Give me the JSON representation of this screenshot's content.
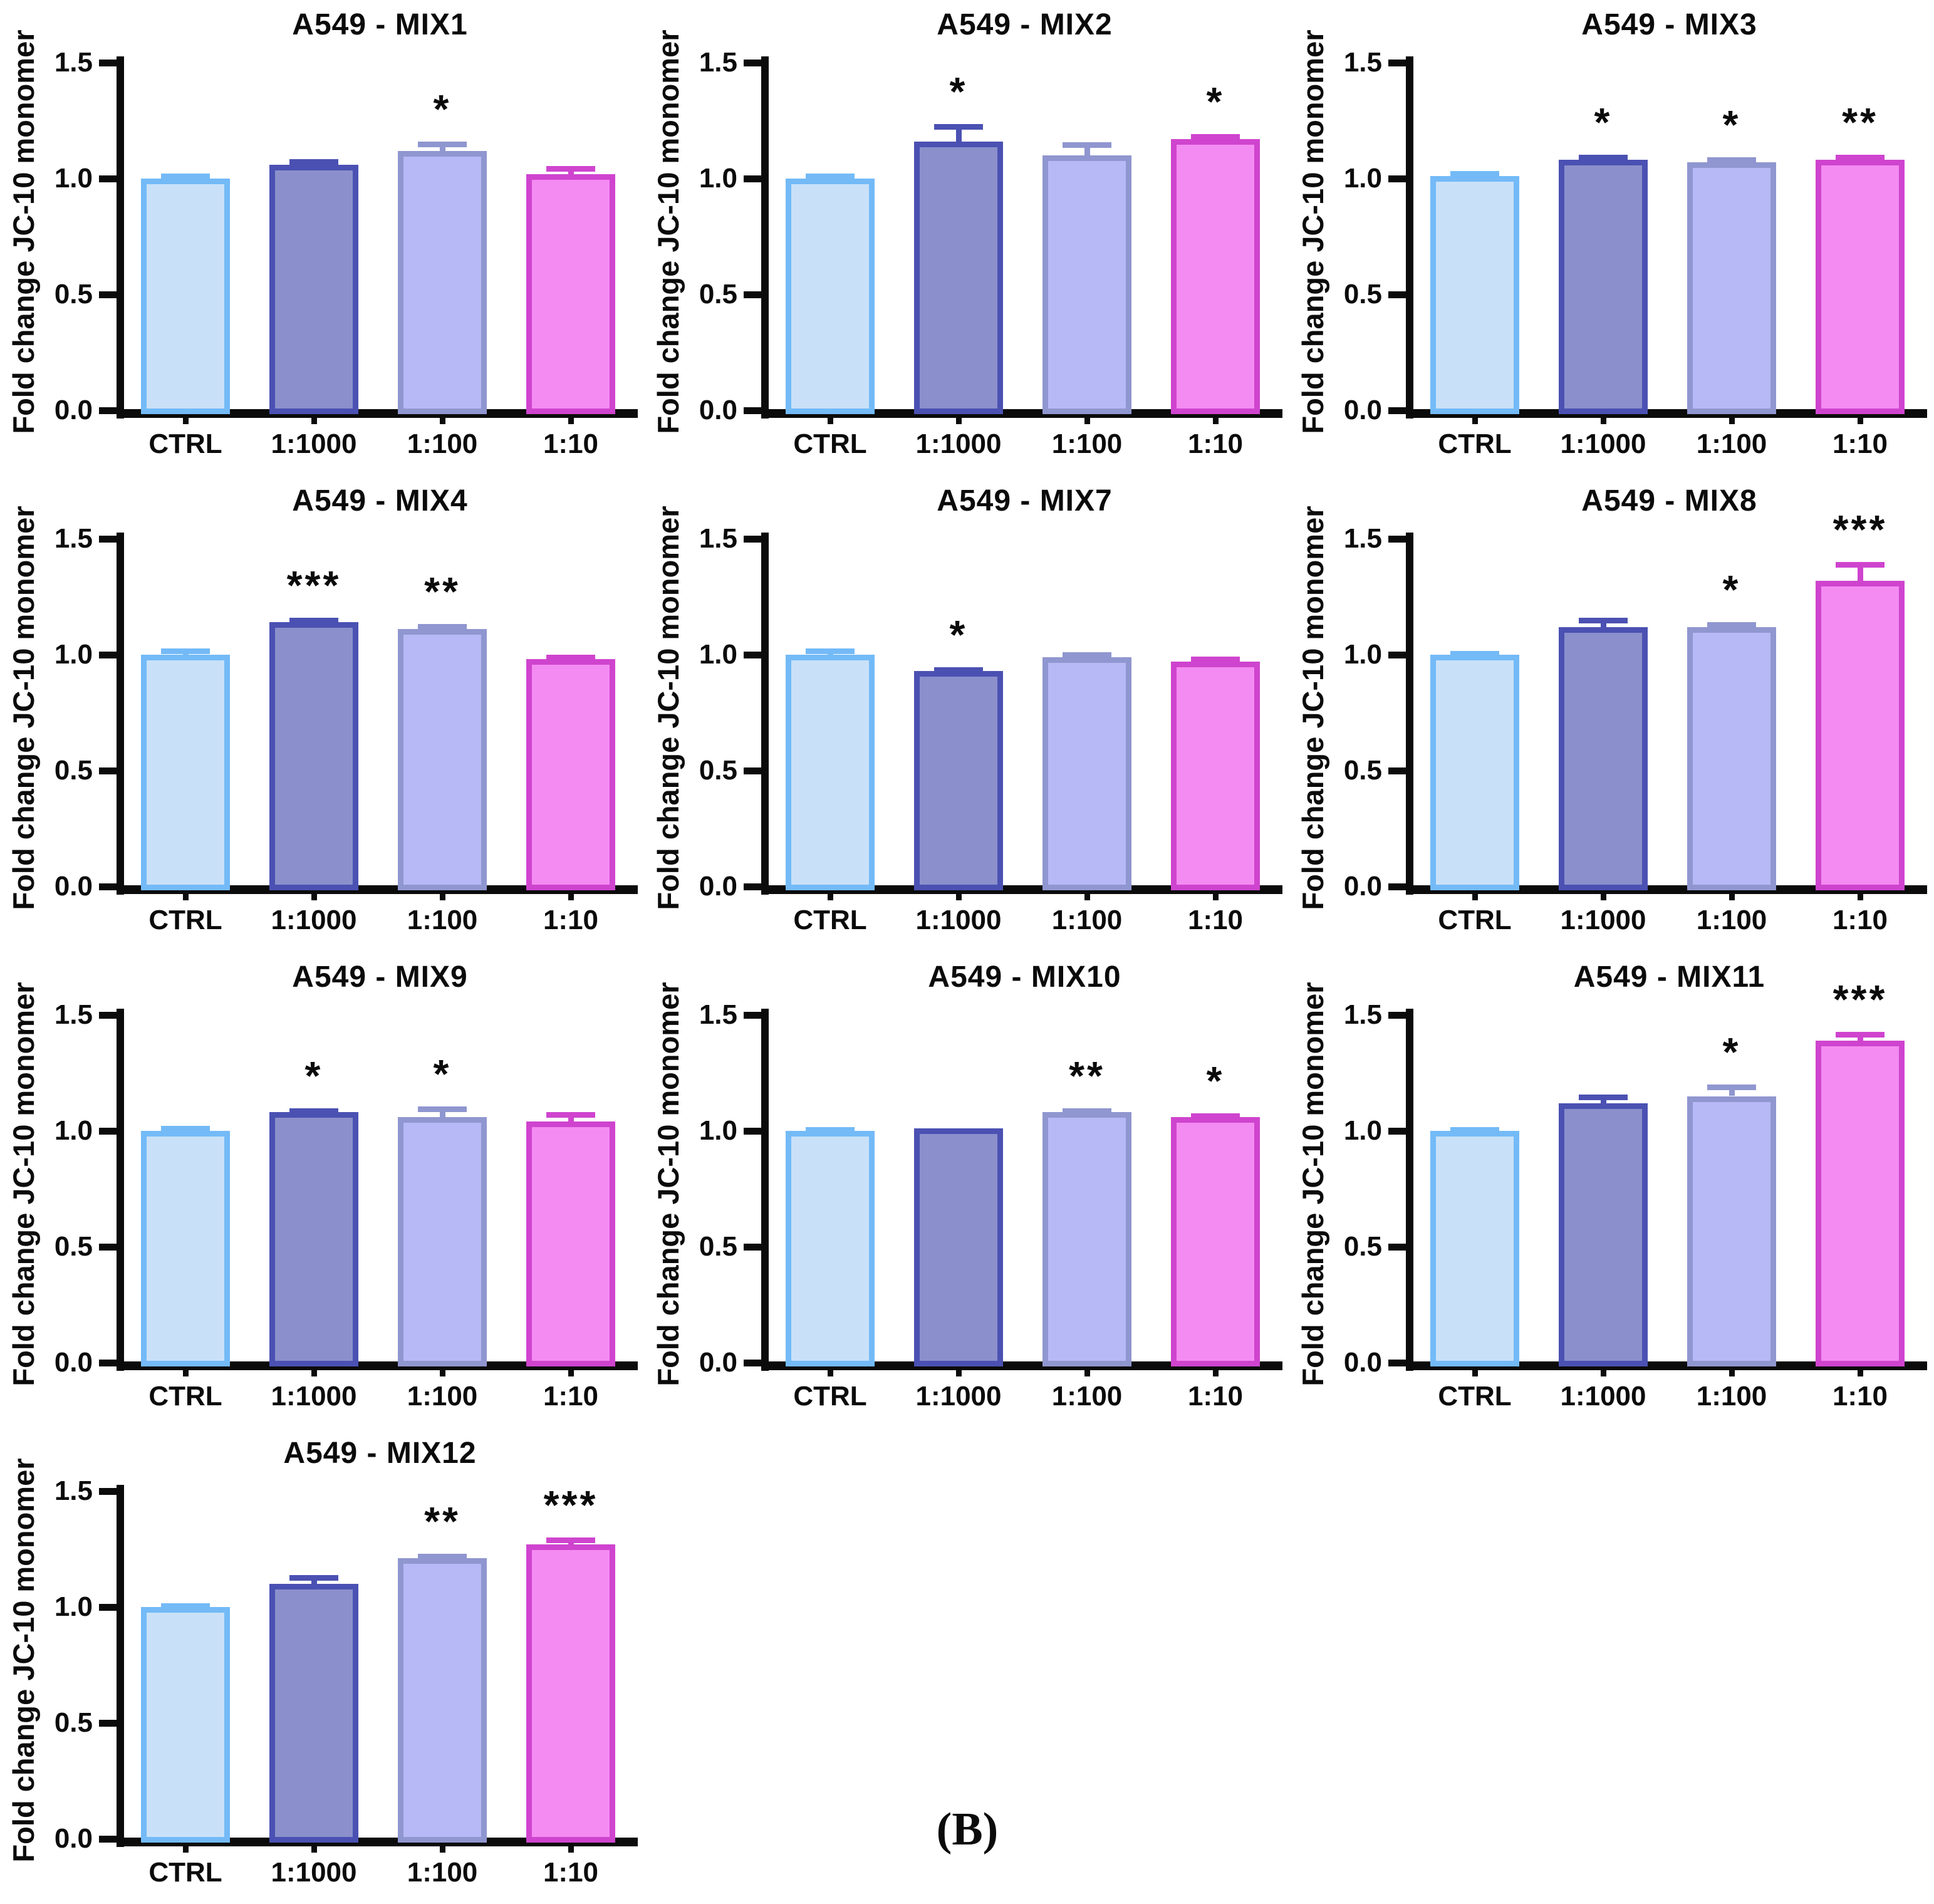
{
  "figure_label": "(B)",
  "axis": {
    "ylabel": "Fold change JC-10 monomer",
    "yticks": [
      "0.0",
      "0.5",
      "1.0",
      "1.5"
    ],
    "ytick_values": [
      0,
      0.5,
      1.0,
      1.5
    ],
    "ymax": 1.5
  },
  "colors": {
    "axis": "#0b0b0b",
    "text": "#000000",
    "significance": "#0b0b0b",
    "bars": [
      {
        "name": "ctrl",
        "fill": "#C9E1F8",
        "border": "#73BAF7"
      },
      {
        "name": "dilution-1-1000",
        "fill": "#8B90CC",
        "border": "#4B51B2"
      },
      {
        "name": "dilution-1-100",
        "fill": "#B7B9F7",
        "border": "#9096CF"
      },
      {
        "name": "dilution-1-10",
        "fill": "#F48BF2",
        "border": "#CF44CE"
      }
    ]
  },
  "chart_data": {
    "type": "bar",
    "categories": [
      "CTRL",
      "1:1000",
      "1:100",
      "1:10"
    ],
    "xlabel": "",
    "ylabel": "Fold change JC-10 monomer",
    "ylim": [
      0,
      1.5
    ],
    "grid": false,
    "legend": "none",
    "error_bars": "upper, capped, colored as bar border",
    "panels": [
      {
        "title": "A549 - MIX1",
        "row": 0,
        "col": 0,
        "values": [
          1.0,
          1.06,
          1.12,
          1.02
        ],
        "errors": [
          0.012,
          0.012,
          0.03,
          0.022
        ],
        "sig": [
          "",
          "",
          "*",
          ""
        ]
      },
      {
        "title": "A549 - MIX2",
        "row": 0,
        "col": 1,
        "values": [
          1.0,
          1.16,
          1.1,
          1.17
        ],
        "errors": [
          0.012,
          0.065,
          0.045,
          0.012
        ],
        "sig": [
          "",
          "*",
          "",
          "*"
        ]
      },
      {
        "title": "A549 - MIX3",
        "row": 0,
        "col": 2,
        "values": [
          1.01,
          1.08,
          1.07,
          1.08
        ],
        "errors": [
          0.012,
          0.012,
          0.01,
          0.012
        ],
        "sig": [
          "",
          "*",
          "*",
          "**"
        ]
      },
      {
        "title": "A549 - MIX4",
        "row": 1,
        "col": 0,
        "values": [
          1.0,
          1.14,
          1.11,
          0.98
        ],
        "errors": [
          0.015,
          0.01,
          0.012,
          0.01
        ],
        "sig": [
          "",
          "***",
          "**",
          ""
        ]
      },
      {
        "title": "A549 - MIX7",
        "row": 1,
        "col": 1,
        "values": [
          1.0,
          0.93,
          0.99,
          0.97
        ],
        "errors": [
          0.015,
          0.006,
          0.01,
          0.01
        ],
        "sig": [
          "",
          "*",
          "",
          ""
        ]
      },
      {
        "title": "A549 - MIX8",
        "row": 1,
        "col": 2,
        "values": [
          1.0,
          1.12,
          1.12,
          1.32
        ],
        "errors": [
          0.006,
          0.03,
          0.01,
          0.068
        ],
        "sig": [
          "",
          "",
          "*",
          "***"
        ]
      },
      {
        "title": "A549 - MIX9",
        "row": 2,
        "col": 0,
        "values": [
          1.0,
          1.08,
          1.06,
          1.04
        ],
        "errors": [
          0.01,
          0.006,
          0.035,
          0.03
        ],
        "sig": [
          "",
          "*",
          "*",
          ""
        ]
      },
      {
        "title": "A549 - MIX10",
        "row": 2,
        "col": 1,
        "values": [
          1.0,
          1.01,
          1.08,
          1.06
        ],
        "errors": [
          0.006,
          0.0,
          0.006,
          0.006
        ],
        "sig": [
          "",
          "",
          "**",
          "*"
        ]
      },
      {
        "title": "A549 - MIX11",
        "row": 2,
        "col": 2,
        "values": [
          1.0,
          1.12,
          1.15,
          1.39
        ],
        "errors": [
          0.006,
          0.025,
          0.04,
          0.025
        ],
        "sig": [
          "",
          "",
          "*",
          "***"
        ]
      },
      {
        "title": "A549 - MIX12",
        "row": 3,
        "col": 0,
        "values": [
          1.0,
          1.1,
          1.21,
          1.27
        ],
        "errors": [
          0.006,
          0.028,
          0.008,
          0.018
        ],
        "sig": [
          "",
          "",
          "**",
          "***"
        ]
      }
    ]
  }
}
